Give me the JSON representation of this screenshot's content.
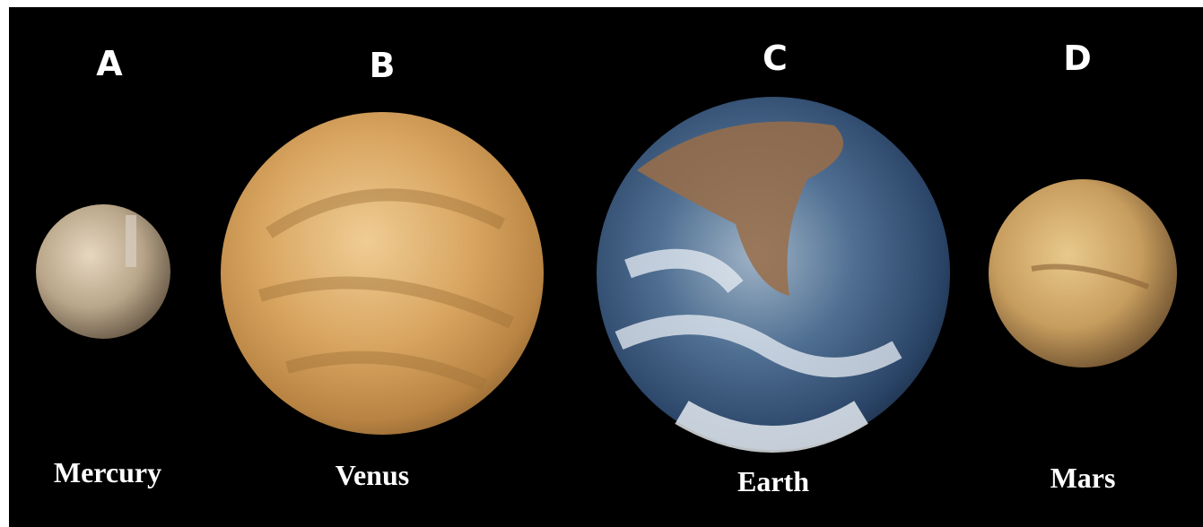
{
  "planets": [
    {
      "letter": "A",
      "name": "Mercury"
    },
    {
      "letter": "B",
      "name": "Venus"
    },
    {
      "letter": "C",
      "name": "Earth"
    },
    {
      "letter": "D",
      "name": "Mars"
    }
  ]
}
